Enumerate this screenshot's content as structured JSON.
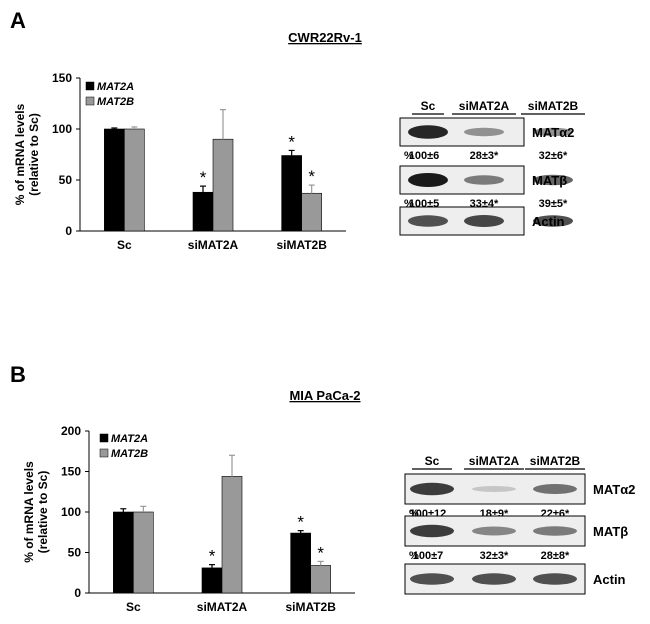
{
  "panels": [
    {
      "letter": "A",
      "title": "CWR22Rv-1",
      "chart_data": {
        "type": "bar",
        "ylabel_line1": "% of mRNA levels",
        "ylabel_line2": "(relative to Sc)",
        "categories": [
          "Sc",
          "siMAT2A",
          "siMAT2B"
        ],
        "ylim": [
          0,
          150
        ],
        "yticks": [
          "0",
          "50",
          "100",
          "150"
        ],
        "series": [
          {
            "name": "MAT2A",
            "color": "#000000",
            "values": [
              100,
              38,
              74
            ],
            "errors": [
              1,
              6,
              5
            ],
            "stars": [
              false,
              true,
              true
            ]
          },
          {
            "name": "MAT2B",
            "color": "#999999",
            "values": [
              100,
              90,
              37
            ],
            "errors": [
              2,
              29,
              8
            ],
            "stars": [
              false,
              false,
              true
            ]
          }
        ],
        "star": "*"
      },
      "blot": {
        "lanes": [
          "Sc",
          "siMAT2A",
          "siMAT2B"
        ],
        "rows": [
          {
            "label": "MATα2",
            "intensity": [
              0.95,
              0.45,
              0.45
            ],
            "quant_prefix": "%",
            "quant": [
              "100±6",
              "28±3*",
              "32±6*"
            ]
          },
          {
            "label": "MATβ",
            "intensity": [
              1.0,
              0.55,
              0.65
            ],
            "quant_prefix": "%",
            "quant": [
              "100±5",
              "33±4*",
              "39±5*"
            ]
          },
          {
            "label": "Actin",
            "intensity": [
              0.75,
              0.8,
              0.75
            ],
            "quant_prefix": "",
            "quant": []
          }
        ]
      }
    },
    {
      "letter": "B",
      "title": "MIA PaCa-2",
      "chart_data": {
        "type": "bar",
        "ylabel_line1": "% of mRNA levels",
        "ylabel_line2": "(relative to Sc)",
        "categories": [
          "Sc",
          "siMAT2A",
          "siMAT2B"
        ],
        "ylim": [
          0,
          200
        ],
        "yticks": [
          "0",
          "50",
          "100",
          "150",
          "200"
        ],
        "series": [
          {
            "name": "MAT2A",
            "color": "#000000",
            "values": [
              100,
              31,
              74
            ],
            "errors": [
              4,
              4,
              3
            ],
            "stars": [
              false,
              true,
              true
            ]
          },
          {
            "name": "MAT2B",
            "color": "#999999",
            "values": [
              100,
              144,
              34
            ],
            "errors": [
              7,
              26,
              5
            ],
            "stars": [
              false,
              false,
              true
            ]
          }
        ],
        "star": "*"
      },
      "blot": {
        "lanes": [
          "Sc",
          "siMAT2A",
          "siMAT2B"
        ],
        "rows": [
          {
            "label": "MATα2",
            "intensity": [
              0.85,
              0.2,
              0.6
            ],
            "quant_prefix": "%",
            "quant": [
              "100±12",
              "18±9*",
              "22±6*"
            ]
          },
          {
            "label": "MATβ",
            "intensity": [
              0.85,
              0.5,
              0.55
            ],
            "quant_prefix": "%",
            "quant": [
              "100±7",
              "32±3*",
              "28±8*"
            ]
          },
          {
            "label": "Actin",
            "intensity": [
              0.75,
              0.75,
              0.75
            ],
            "quant_prefix": "",
            "quant": []
          }
        ]
      }
    }
  ]
}
